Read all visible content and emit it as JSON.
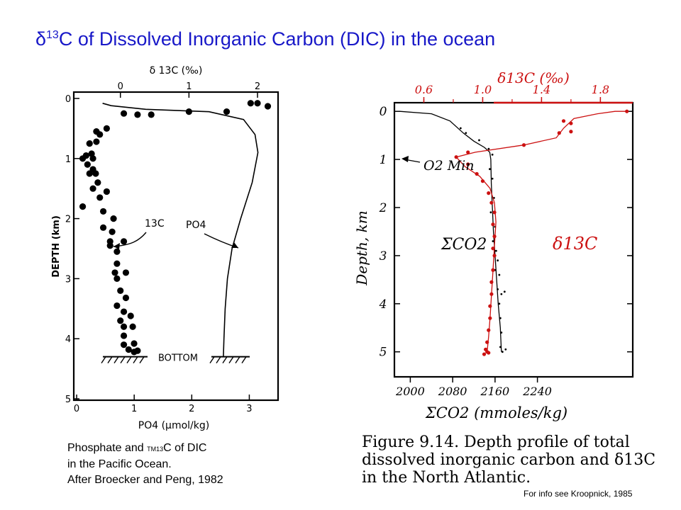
{
  "slide": {
    "title_prefix": "δ",
    "title_sup": "13",
    "title_rest": "C of Dissolved Inorganic Carbon (DIC) in the ocean"
  },
  "left_caption": {
    "line1_a": "Phosphate and ",
    "line1_tiny": "TM13",
    "line1_b": "C of DIC",
    "line2": "in the Pacific Ocean.",
    "line3": "After Broecker and Peng, 1982"
  },
  "right_caption": {
    "line1": "Figure 9.14.   Depth profile of total",
    "line2": "dissolved inorganic carbon and δ13C",
    "line3": "in the North Atlantic."
  },
  "footnote": "For info see Kroopnick, 1985",
  "colors": {
    "title": "#1818c8",
    "red_series": "#cc1111",
    "ink": "#000000"
  },
  "chart_data": [
    {
      "type": "scatter",
      "top_axis_label": "δ 13C (‰)",
      "bottom_axis_label": "PO4 (μmol/kg)",
      "ylabel": "DEPTH (km)",
      "top_ticks": [
        "0",
        "1",
        "2"
      ],
      "top_range": [
        -0.68,
        2.3
      ],
      "bottom_ticks": [
        "0",
        "1",
        "2",
        "3"
      ],
      "bottom_range": [
        -0.05,
        3.5
      ],
      "left_ticks": [
        "0",
        "1",
        "2",
        "3",
        "4",
        "5"
      ],
      "ylim": [
        0,
        5
      ],
      "bottom_marker": "BOTTOM",
      "annotations": [
        "13C",
        "PO4"
      ],
      "series": [
        {
          "name": "13C",
          "x_axis": "top",
          "points": [
            [
              0.05,
              0.25
            ],
            [
              0.25,
              0.27
            ],
            [
              0.45,
              0.27
            ],
            [
              1.0,
              0.22
            ],
            [
              1.55,
              0.22
            ],
            [
              1.9,
              0.08
            ],
            [
              2.0,
              0.08
            ],
            [
              2.15,
              0.13
            ],
            [
              -0.2,
              0.5
            ],
            [
              -0.35,
              0.55
            ],
            [
              -0.3,
              0.6
            ],
            [
              -0.45,
              0.75
            ],
            [
              -0.35,
              0.72
            ],
            [
              -0.42,
              0.92
            ],
            [
              -0.5,
              0.95
            ],
            [
              -0.55,
              1.0
            ],
            [
              -0.4,
              1.0
            ],
            [
              -0.48,
              1.1
            ],
            [
              -0.4,
              1.18
            ],
            [
              -0.36,
              1.25
            ],
            [
              -0.45,
              1.25
            ],
            [
              -0.33,
              1.4
            ],
            [
              -0.4,
              1.5
            ],
            [
              -0.2,
              1.55
            ],
            [
              -0.3,
              1.65
            ],
            [
              -0.55,
              1.8
            ],
            [
              -0.25,
              1.88
            ],
            [
              -0.1,
              2.0
            ],
            [
              -0.25,
              2.15
            ],
            [
              -0.12,
              2.22
            ],
            [
              -0.15,
              2.38
            ],
            [
              0.05,
              2.38
            ],
            [
              -0.15,
              2.45
            ],
            [
              -0.05,
              2.55
            ],
            [
              -0.05,
              2.75
            ],
            [
              -0.08,
              2.9
            ],
            [
              0.08,
              2.9
            ],
            [
              -0.05,
              3.0
            ],
            [
              0.0,
              3.2
            ],
            [
              0.08,
              3.32
            ],
            [
              -0.05,
              3.45
            ],
            [
              0.05,
              3.55
            ],
            [
              0.15,
              3.62
            ],
            [
              0.0,
              3.7
            ],
            [
              0.05,
              3.8
            ],
            [
              0.18,
              3.8
            ],
            [
              0.05,
              3.95
            ],
            [
              0.2,
              4.08
            ],
            [
              0.05,
              4.1
            ],
            [
              0.12,
              4.18
            ],
            [
              0.2,
              4.22
            ],
            [
              0.25,
              4.2
            ]
          ]
        },
        {
          "name": "PO4",
          "x_axis": "bottom",
          "curve": [
            [
              0.45,
              0.08
            ],
            [
              0.6,
              0.12
            ],
            [
              1.2,
              0.18
            ],
            [
              2.3,
              0.22
            ],
            [
              2.9,
              0.35
            ],
            [
              3.1,
              0.6
            ],
            [
              3.15,
              0.9
            ],
            [
              3.05,
              1.4
            ],
            [
              2.85,
              2.0
            ],
            [
              2.7,
              2.5
            ],
            [
              2.62,
              3.0
            ],
            [
              2.58,
              3.5
            ],
            [
              2.56,
              4.0
            ],
            [
              2.55,
              4.3
            ]
          ]
        }
      ]
    },
    {
      "type": "line",
      "top_axis_label": "δ13C (‰)",
      "bottom_axis_label": "ΣCO2 (mmoles/kg)",
      "ylabel": "Depth, km",
      "top_ticks": [
        "0.6",
        "1.0",
        "1.4",
        "1.8"
      ],
      "top_range": [
        0.4,
        2.02
      ],
      "bottom_ticks": [
        "2000",
        "2080",
        "2160",
        "2240"
      ],
      "bottom_range": [
        1970,
        2420
      ],
      "left_ticks": [
        "0",
        "1",
        "2",
        "3",
        "4",
        "5"
      ],
      "ylim": [
        -0.18,
        5.52
      ],
      "annotations": [
        "O2 Min",
        "ΣCO2",
        "δ13C"
      ],
      "series": [
        {
          "name": "ΣCO2",
          "color": "#000000",
          "x_axis": "bottom",
          "curve": [
            [
              1980,
              0.0
            ],
            [
              2040,
              0.05
            ],
            [
              2075,
              0.2
            ],
            [
              2100,
              0.45
            ],
            [
              2120,
              0.62
            ],
            [
              2140,
              0.75
            ],
            [
              2150,
              0.85
            ],
            [
              2152,
              1.0
            ],
            [
              2153,
              1.5
            ],
            [
              2155,
              2.0
            ],
            [
              2157,
              2.5
            ],
            [
              2160,
              3.0
            ],
            [
              2163,
              3.5
            ],
            [
              2166,
              4.0
            ],
            [
              2170,
              4.5
            ],
            [
              2172,
              5.0
            ]
          ],
          "points": [
            [
              2095,
              0.35
            ],
            [
              2105,
              0.45
            ],
            [
              2130,
              0.6
            ],
            [
              2148,
              0.78
            ],
            [
              2155,
              0.9
            ],
            [
              2150,
              1.2
            ],
            [
              2155,
              1.4
            ],
            [
              2158,
              1.8
            ],
            [
              2152,
              2.1
            ],
            [
              2160,
              2.4
            ],
            [
              2156,
              2.7
            ],
            [
              2162,
              2.9
            ],
            [
              2165,
              3.1
            ],
            [
              2160,
              3.3
            ],
            [
              2168,
              3.4
            ],
            [
              2165,
              3.7
            ],
            [
              2172,
              3.8
            ],
            [
              2178,
              3.75
            ],
            [
              2168,
              4.0
            ],
            [
              2170,
              4.3
            ],
            [
              2172,
              4.6
            ],
            [
              2170,
              4.9
            ],
            [
              2174,
              5.0
            ],
            [
              2180,
              4.95
            ]
          ]
        },
        {
          "name": "δ13C",
          "color": "#cc1111",
          "x_axis": "top",
          "curve": [
            [
              1.98,
              0.0
            ],
            [
              1.9,
              0.0
            ],
            [
              1.78,
              0.05
            ],
            [
              1.62,
              0.15
            ],
            [
              1.55,
              0.35
            ],
            [
              1.5,
              0.55
            ],
            [
              1.28,
              0.7
            ],
            [
              0.95,
              0.85
            ],
            [
              0.82,
              0.95
            ],
            [
              0.88,
              1.15
            ],
            [
              0.98,
              1.35
            ],
            [
              1.05,
              1.6
            ],
            [
              1.08,
              1.9
            ],
            [
              1.09,
              2.3
            ],
            [
              1.08,
              2.8
            ],
            [
              1.07,
              3.3
            ],
            [
              1.06,
              3.8
            ],
            [
              1.05,
              4.3
            ],
            [
              1.04,
              4.7
            ],
            [
              1.03,
              5.0
            ]
          ],
          "points": [
            [
              1.98,
              0.0
            ],
            [
              1.55,
              0.2
            ],
            [
              1.6,
              0.25
            ],
            [
              1.52,
              0.45
            ],
            [
              1.6,
              0.42
            ],
            [
              1.28,
              0.7
            ],
            [
              0.9,
              0.85
            ],
            [
              0.82,
              0.95
            ],
            [
              0.9,
              1.1
            ],
            [
              0.96,
              1.3
            ],
            [
              1.0,
              1.45
            ],
            [
              1.04,
              1.7
            ],
            [
              1.06,
              1.9
            ],
            [
              1.08,
              2.1
            ],
            [
              1.07,
              2.35
            ],
            [
              1.08,
              2.6
            ],
            [
              1.07,
              2.85
            ],
            [
              1.08,
              3.0
            ],
            [
              1.07,
              3.3
            ],
            [
              1.06,
              3.55
            ],
            [
              1.06,
              3.8
            ],
            [
              1.05,
              4.05
            ],
            [
              1.05,
              4.3
            ],
            [
              1.04,
              4.55
            ],
            [
              1.03,
              4.8
            ],
            [
              1.02,
              4.95
            ],
            [
              1.03,
              5.0
            ],
            [
              1.01,
              5.05
            ],
            [
              1.04,
              5.02
            ]
          ]
        }
      ]
    }
  ]
}
